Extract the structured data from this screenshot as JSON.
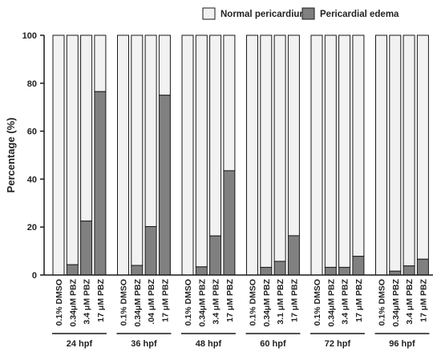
{
  "chart_data": {
    "type": "bar",
    "stacked": true,
    "ylabel": "Percentage (%)",
    "xlabel": "",
    "ylim": [
      0,
      100
    ],
    "yticks": [
      0,
      20,
      40,
      60,
      80,
      100
    ],
    "legend": {
      "position": "top",
      "entries": [
        {
          "name": "Normal pericardium",
          "color": "#f2f2f2"
        },
        {
          "name": "Pericardial edema",
          "color": "#808080"
        }
      ]
    },
    "groups": [
      {
        "label": "24 hpf",
        "categories": [
          "0.1% DMSO",
          "0.34μM PBZ",
          "3.4 μM PBZ",
          "17 μM PBZ"
        ],
        "edema": [
          0,
          4.3,
          22.5,
          76.5
        ]
      },
      {
        "label": "36 hpf",
        "categories": [
          "0.1% DMSO",
          "0.34μM PBZ",
          ".04 μM PBZ",
          "17 μM PBZ"
        ],
        "edema": [
          0,
          4,
          20.2,
          75
        ]
      },
      {
        "label": "48 hpf",
        "categories": [
          "0.1% DMSO",
          "0.34μM PBZ",
          "3.4 μM PBZ",
          "17 μM PBZ"
        ],
        "edema": [
          0,
          3.4,
          16.3,
          43.5
        ]
      },
      {
        "label": "60 hpf",
        "categories": [
          "0.1% DMSO",
          "0.34μM PBZ",
          "3.1 μM PBZ",
          "17 μM PBZ"
        ],
        "edema": [
          0,
          3.2,
          5.7,
          16.4
        ]
      },
      {
        "label": "72 hpf",
        "categories": [
          "0.1% DMSO",
          "0.34μM PBZ",
          "3.4 μM PBZ",
          "17 μM PBZ"
        ],
        "edema": [
          0,
          3.2,
          3.2,
          7.8
        ]
      },
      {
        "label": "96 hpf",
        "categories": [
          "0.1% DMSO",
          "0.34μM PBZ",
          "3.4 μM PBZ",
          "17 μM PBZ"
        ],
        "edema": [
          0,
          1.6,
          3.8,
          6.6
        ]
      }
    ],
    "colors": {
      "normal": "#f2f2f2",
      "edema": "#808080",
      "stroke": "#1a1a1a"
    }
  }
}
